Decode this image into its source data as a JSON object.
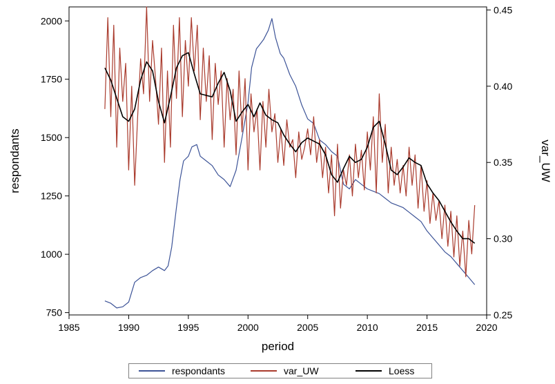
{
  "chart_data": {
    "type": "line",
    "title": "",
    "xlabel": "period",
    "ylabel_left": "respondants",
    "ylabel_right": "var_UW",
    "xlim": [
      1985,
      2020
    ],
    "ylim_left": [
      740,
      2060
    ],
    "ylim_right": [
      0.25,
      0.452
    ],
    "x_ticks": [
      1985,
      1990,
      1995,
      2000,
      2005,
      2010,
      2015,
      2020
    ],
    "y_left_ticks": [
      750,
      1000,
      1250,
      1500,
      1750,
      2000
    ],
    "y_right_ticks": [
      "0.25",
      "0.30",
      "0.35",
      "0.40",
      "0.45"
    ],
    "grid": false,
    "legend_position": "bottom",
    "series": [
      {
        "name": "respondants",
        "axis": "left",
        "color": "#3c5397",
        "x": [
          1988.0,
          1988.5,
          1989.0,
          1989.5,
          1990.0,
          1990.5,
          1991.0,
          1991.5,
          1992.0,
          1992.5,
          1993.0,
          1993.3,
          1993.6,
          1994.0,
          1994.3,
          1994.6,
          1995.0,
          1995.3,
          1995.7,
          1996.0,
          1996.5,
          1997.0,
          1997.5,
          1998.0,
          1998.5,
          1999.0,
          1999.5,
          2000.0,
          2000.3,
          2000.7,
          2001.0,
          2001.3,
          2001.7,
          2002.0,
          2002.3,
          2002.7,
          2003.0,
          2003.5,
          2004.0,
          2004.5,
          2005.0,
          2005.5,
          2006.0,
          2006.5,
          2007.0,
          2007.5,
          2008.0,
          2008.5,
          2009.0,
          2009.5,
          2010.0,
          2010.5,
          2011.0,
          2011.5,
          2012.0,
          2012.5,
          2013.0,
          2013.5,
          2014.0,
          2014.5,
          2015.0,
          2015.5,
          2016.0,
          2016.5,
          2017.0,
          2017.5,
          2018.0,
          2018.5,
          2019.0
        ],
        "values": [
          800,
          790,
          770,
          775,
          795,
          880,
          900,
          910,
          930,
          945,
          930,
          950,
          1030,
          1200,
          1320,
          1400,
          1420,
          1460,
          1470,
          1420,
          1400,
          1380,
          1340,
          1320,
          1290,
          1360,
          1500,
          1650,
          1800,
          1880,
          1900,
          1920,
          1960,
          2010,
          1930,
          1860,
          1840,
          1770,
          1720,
          1640,
          1580,
          1560,
          1490,
          1470,
          1440,
          1420,
          1300,
          1280,
          1320,
          1300,
          1280,
          1270,
          1260,
          1240,
          1220,
          1210,
          1200,
          1180,
          1160,
          1140,
          1100,
          1070,
          1040,
          1010,
          990,
          960,
          930,
          900,
          870
        ]
      },
      {
        "name": "var_UW",
        "axis": "right",
        "color": "#a93a2c",
        "x": [
          1988.0,
          1988.25,
          1988.5,
          1988.75,
          1989.0,
          1989.25,
          1989.5,
          1989.75,
          1990.0,
          1990.25,
          1990.5,
          1990.75,
          1991.0,
          1991.25,
          1991.5,
          1991.75,
          1992.0,
          1992.25,
          1992.5,
          1992.75,
          1993.0,
          1993.25,
          1993.5,
          1993.75,
          1994.0,
          1994.25,
          1994.5,
          1994.75,
          1995.0,
          1995.25,
          1995.5,
          1995.75,
          1996.0,
          1996.25,
          1996.5,
          1996.75,
          1997.0,
          1997.25,
          1997.5,
          1997.75,
          1998.0,
          1998.25,
          1998.5,
          1998.75,
          1999.0,
          1999.25,
          1999.5,
          1999.75,
          2000.0,
          2000.25,
          2000.5,
          2000.75,
          2001.0,
          2001.25,
          2001.5,
          2001.75,
          2002.0,
          2002.25,
          2002.5,
          2002.75,
          2003.0,
          2003.25,
          2003.5,
          2003.75,
          2004.0,
          2004.25,
          2004.5,
          2004.75,
          2005.0,
          2005.25,
          2005.5,
          2005.75,
          2006.0,
          2006.25,
          2006.5,
          2006.75,
          2007.0,
          2007.25,
          2007.5,
          2007.75,
          2008.0,
          2008.25,
          2008.5,
          2008.75,
          2009.0,
          2009.25,
          2009.5,
          2009.75,
          2010.0,
          2010.25,
          2010.5,
          2010.75,
          2011.0,
          2011.25,
          2011.5,
          2011.75,
          2012.0,
          2012.25,
          2012.5,
          2012.75,
          2013.0,
          2013.25,
          2013.5,
          2013.75,
          2014.0,
          2014.25,
          2014.5,
          2014.75,
          2015.0,
          2015.25,
          2015.5,
          2015.75,
          2016.0,
          2016.25,
          2016.5,
          2016.75,
          2017.0,
          2017.25,
          2017.5,
          2017.75,
          2018.0,
          2018.25,
          2018.5,
          2018.75,
          2019.0
        ],
        "values": [
          0.385,
          0.445,
          0.38,
          0.44,
          0.36,
          0.425,
          0.39,
          0.415,
          0.345,
          0.4,
          0.335,
          0.38,
          0.418,
          0.395,
          0.452,
          0.39,
          0.43,
          0.405,
          0.375,
          0.425,
          0.35,
          0.41,
          0.36,
          0.44,
          0.392,
          0.445,
          0.38,
          0.43,
          0.4,
          0.445,
          0.41,
          0.44,
          0.378,
          0.425,
          0.39,
          0.42,
          0.365,
          0.415,
          0.388,
          0.41,
          0.36,
          0.405,
          0.378,
          0.398,
          0.355,
          0.41,
          0.37,
          0.405,
          0.345,
          0.395,
          0.37,
          0.385,
          0.345,
          0.39,
          0.36,
          0.398,
          0.37,
          0.382,
          0.35,
          0.372,
          0.348,
          0.378,
          0.36,
          0.365,
          0.34,
          0.37,
          0.352,
          0.36,
          0.372,
          0.355,
          0.38,
          0.35,
          0.365,
          0.34,
          0.36,
          0.33,
          0.355,
          0.315,
          0.362,
          0.32,
          0.345,
          0.335,
          0.355,
          0.328,
          0.362,
          0.34,
          0.358,
          0.332,
          0.37,
          0.345,
          0.38,
          0.33,
          0.395,
          0.35,
          0.375,
          0.33,
          0.36,
          0.335,
          0.352,
          0.33,
          0.348,
          0.328,
          0.36,
          0.335,
          0.355,
          0.32,
          0.348,
          0.318,
          0.338,
          0.31,
          0.33,
          0.312,
          0.325,
          0.3,
          0.322,
          0.295,
          0.318,
          0.288,
          0.315,
          0.282,
          0.305,
          0.275,
          0.312,
          0.29,
          0.322
        ]
      },
      {
        "name": "Loess",
        "axis": "right",
        "color": "#000000",
        "x": [
          1988.0,
          1988.5,
          1989.0,
          1989.5,
          1990.0,
          1990.5,
          1991.0,
          1991.5,
          1992.0,
          1992.5,
          1993.0,
          1993.5,
          1994.0,
          1994.5,
          1995.0,
          1995.5,
          1996.0,
          1996.5,
          1997.0,
          1997.5,
          1998.0,
          1998.5,
          1999.0,
          1999.5,
          2000.0,
          2000.5,
          2001.0,
          2001.5,
          2002.0,
          2002.5,
          2003.0,
          2003.5,
          2004.0,
          2004.5,
          2005.0,
          2005.5,
          2006.0,
          2006.5,
          2007.0,
          2007.5,
          2008.0,
          2008.5,
          2009.0,
          2009.5,
          2010.0,
          2010.5,
          2011.0,
          2011.5,
          2012.0,
          2012.5,
          2013.0,
          2013.5,
          2014.0,
          2014.5,
          2015.0,
          2015.5,
          2016.0,
          2016.5,
          2017.0,
          2017.5,
          2018.0,
          2018.5,
          2019.0
        ],
        "values": [
          0.412,
          0.404,
          0.392,
          0.38,
          0.377,
          0.385,
          0.404,
          0.416,
          0.41,
          0.39,
          0.376,
          0.393,
          0.412,
          0.42,
          0.422,
          0.408,
          0.395,
          0.394,
          0.393,
          0.402,
          0.409,
          0.397,
          0.377,
          0.383,
          0.388,
          0.38,
          0.389,
          0.381,
          0.378,
          0.376,
          0.368,
          0.362,
          0.357,
          0.363,
          0.366,
          0.364,
          0.362,
          0.355,
          0.342,
          0.337,
          0.346,
          0.354,
          0.35,
          0.352,
          0.36,
          0.373,
          0.377,
          0.362,
          0.345,
          0.342,
          0.347,
          0.353,
          0.35,
          0.348,
          0.336,
          0.33,
          0.325,
          0.318,
          0.311,
          0.305,
          0.3,
          0.3,
          0.297
        ]
      }
    ]
  },
  "legend": {
    "items": [
      "respondants",
      "var_UW",
      "Loess"
    ]
  }
}
